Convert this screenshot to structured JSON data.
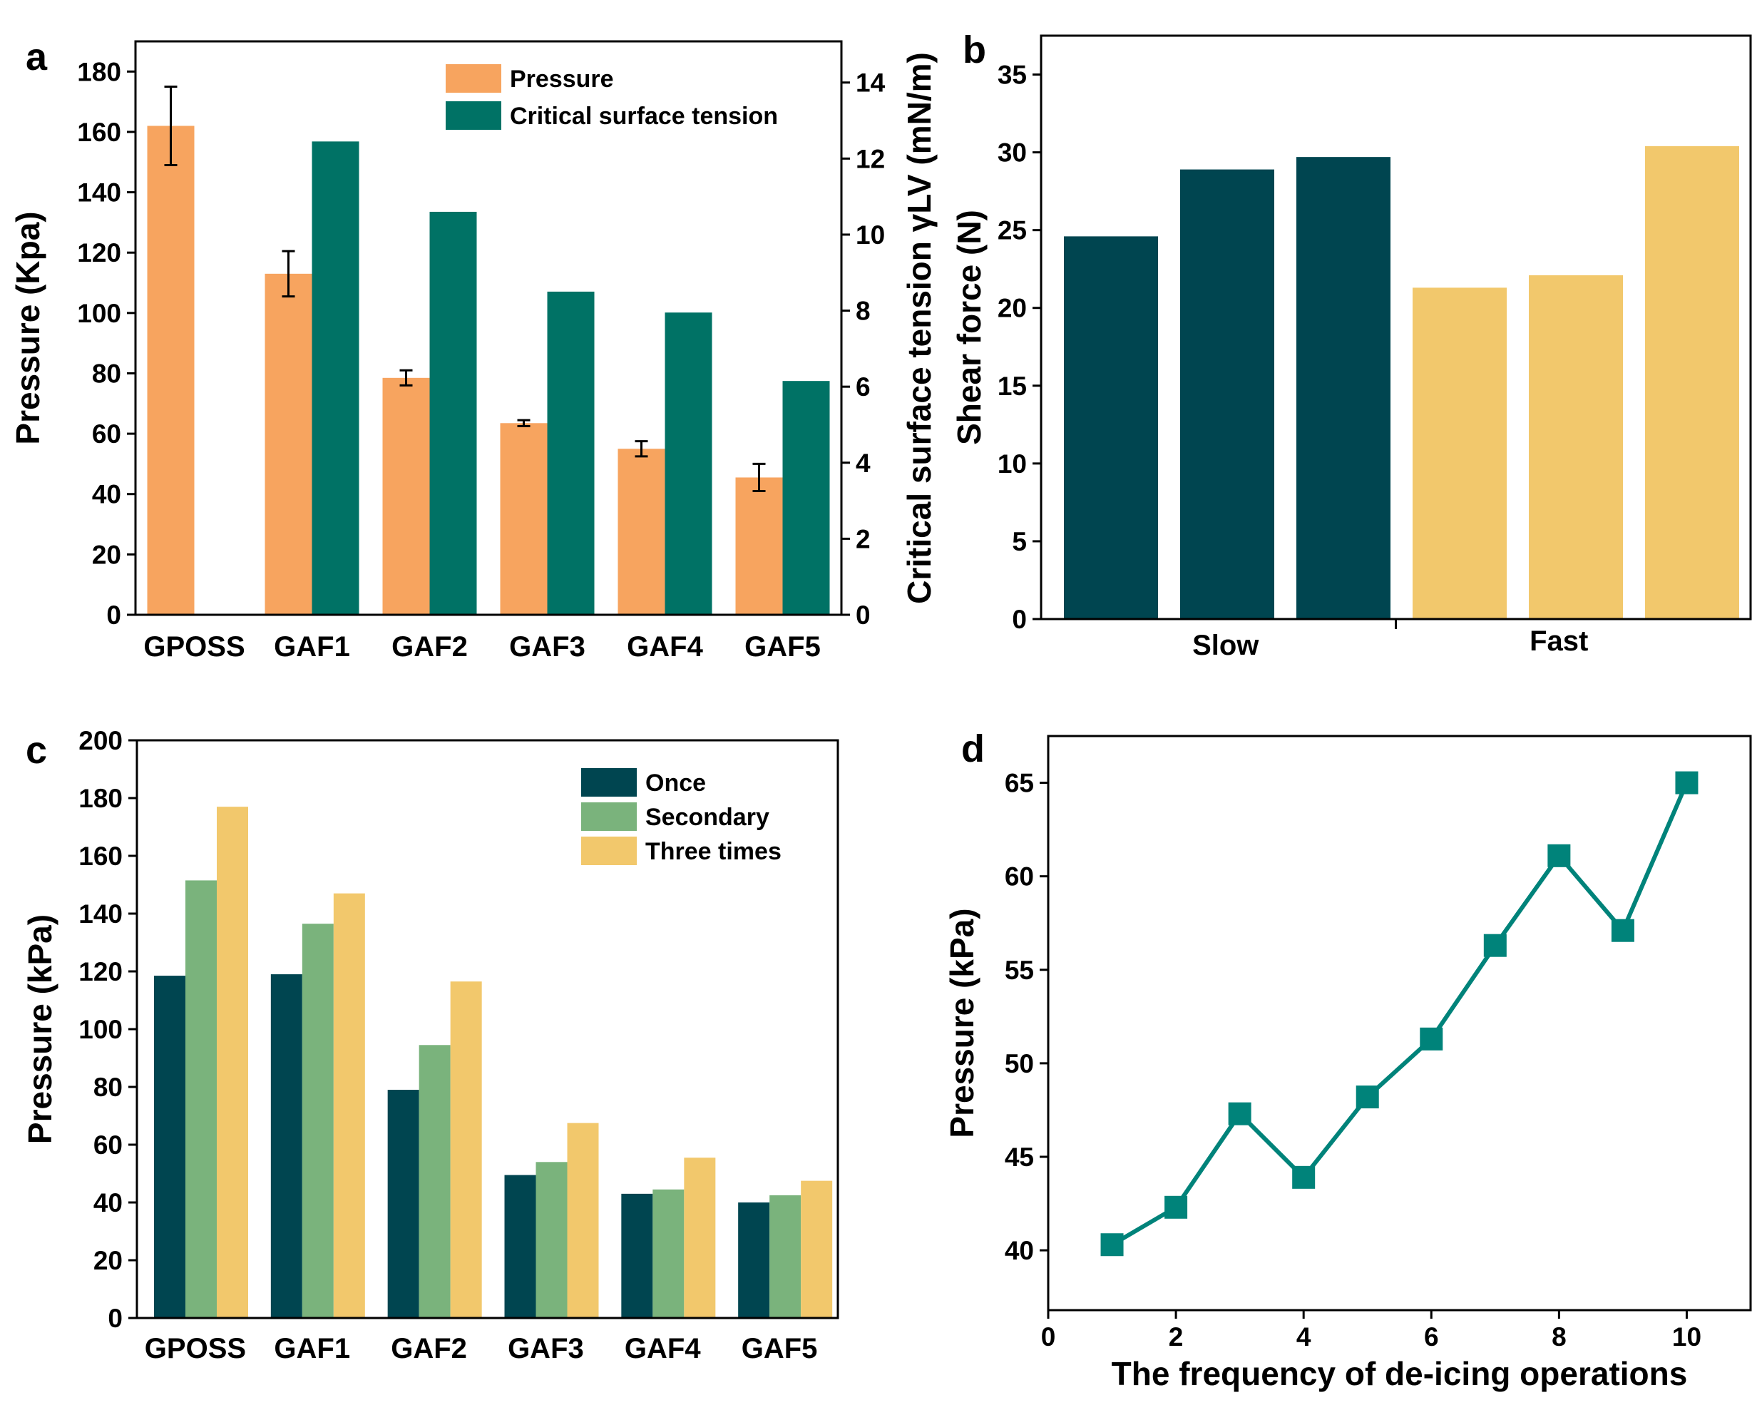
{
  "chart_data": [
    {
      "panel": "a",
      "type": "bar",
      "categories": [
        "GPOSS",
        "GAF1",
        "GAF2",
        "GAF3",
        "GAF4",
        "GAF5"
      ],
      "ylabel": "Pressure (Kpa)",
      "ylabel_right": "Critical surface tension γLV (mN/m)",
      "ylim": [
        0,
        190
      ],
      "yticks": [
        0,
        20,
        40,
        60,
        80,
        100,
        120,
        140,
        160,
        180
      ],
      "ylim_right": [
        0,
        15.083
      ],
      "yticks_right": [
        0,
        2,
        4,
        6,
        8,
        10,
        12,
        14
      ],
      "legend_position": "top-right",
      "series": [
        {
          "name": "Pressure",
          "color": "#f7a45f",
          "axis": "left",
          "values": [
            162,
            113,
            78.5,
            63.5,
            55,
            45.5
          ],
          "errors": [
            13,
            7.5,
            2.5,
            1,
            2.5,
            4.5
          ]
        },
        {
          "name": "Critical surface tension",
          "color": "#007265",
          "axis": "right",
          "values": [
            null,
            12.45,
            10.6,
            8.5,
            7.95,
            6.15
          ]
        }
      ]
    },
    {
      "panel": "b",
      "type": "bar",
      "groups": [
        "Slow",
        "Fast"
      ],
      "ylabel": "Shear force (N)",
      "ylim": [
        0,
        37.5
      ],
      "yticks": [
        0,
        5,
        10,
        15,
        20,
        25,
        30,
        35
      ],
      "series": [
        {
          "name": "Slow",
          "color": "#004550",
          "values": [
            24.6,
            28.9,
            29.7
          ]
        },
        {
          "name": "Fast",
          "color": "#f2c86c",
          "values": [
            21.3,
            22.1,
            30.4
          ]
        }
      ]
    },
    {
      "panel": "c",
      "type": "bar",
      "categories": [
        "GPOSS",
        "GAF1",
        "GAF2",
        "GAF3",
        "GAF4",
        "GAF5"
      ],
      "ylabel": "Pressure (kPa)",
      "ylim": [
        0,
        200
      ],
      "yticks": [
        0,
        20,
        40,
        60,
        80,
        100,
        120,
        140,
        160,
        180,
        200
      ],
      "legend_position": "top-right",
      "series": [
        {
          "name": "Once",
          "color": "#004550",
          "values": [
            118.5,
            119,
            79,
            49.5,
            43,
            40
          ]
        },
        {
          "name": "Secondary",
          "color": "#7ab37c",
          "values": [
            151.5,
            136.5,
            94.5,
            54,
            44.5,
            42.5
          ]
        },
        {
          "name": "Three times",
          "color": "#f2c86c",
          "values": [
            177,
            147,
            116.5,
            67.5,
            55.5,
            47.5
          ]
        }
      ]
    },
    {
      "panel": "d",
      "type": "line",
      "xlabel": "The frequency of de-icing operations",
      "ylabel": "Pressure (kPa)",
      "xlim": [
        0,
        11
      ],
      "xticks": [
        0,
        2,
        4,
        6,
        8,
        10
      ],
      "ylim": [
        36.8,
        67.5
      ],
      "yticks": [
        40,
        45,
        50,
        55,
        60,
        65
      ],
      "series": [
        {
          "name": "Pressure",
          "color": "#00837a",
          "x": [
            1,
            2,
            3,
            4,
            5,
            6,
            7,
            8,
            9,
            10
          ],
          "y": [
            40.3,
            42.3,
            47.3,
            43.9,
            48.2,
            51.3,
            56.3,
            61.1,
            57.1,
            65
          ]
        }
      ]
    }
  ]
}
